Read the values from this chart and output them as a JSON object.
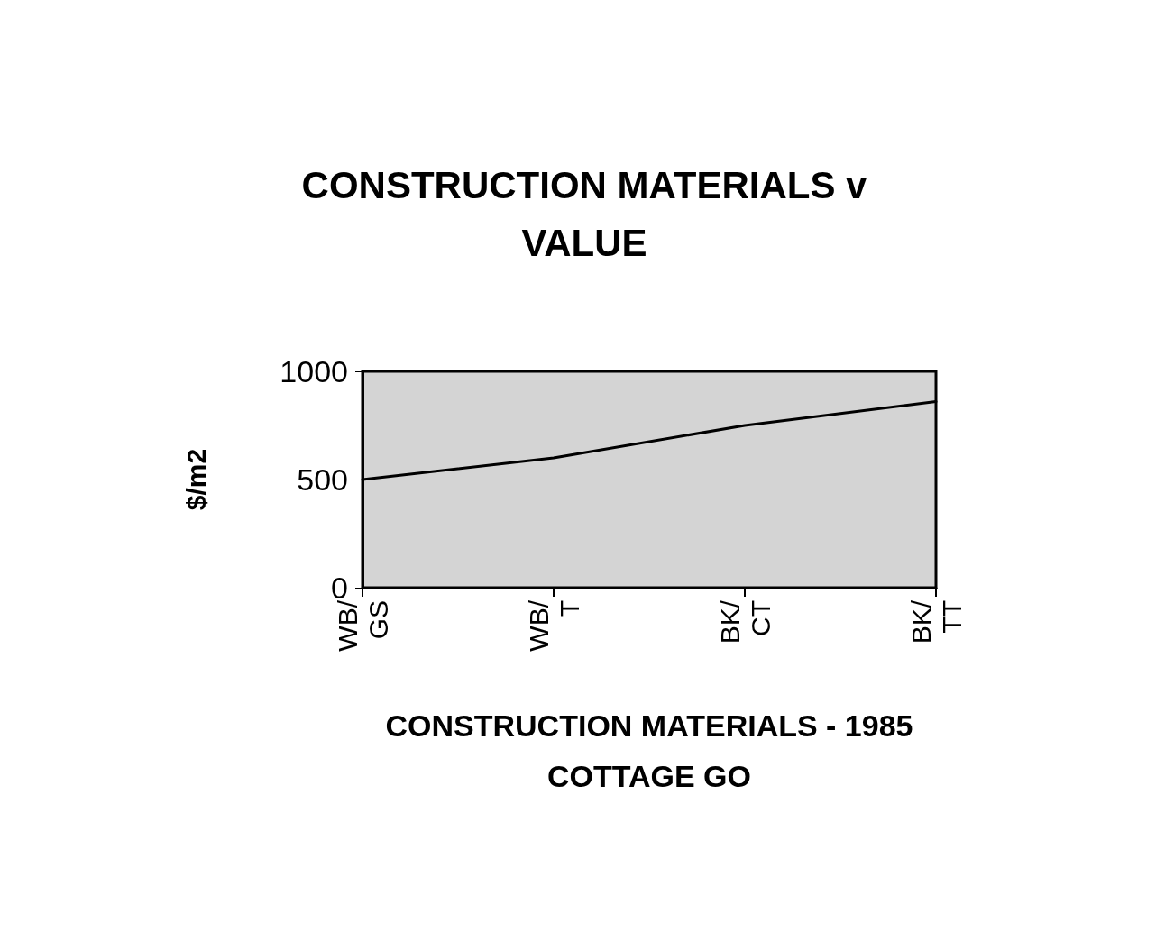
{
  "chart_data": {
    "type": "line",
    "title": "CONSTRUCTION MATERIALS v\nVALUE",
    "xlabel": "CONSTRUCTION MATERIALS - 1985\nCOTTAGE GO",
    "ylabel": "$/m2",
    "categories": [
      "WB/\nGS",
      "WB/\nT",
      "BK/\nCT",
      "BK/\nTT"
    ],
    "series": [
      {
        "color": "#000000",
        "values": [
          500,
          600,
          750,
          860
        ]
      }
    ],
    "ylim": [
      0,
      1000
    ],
    "yticks": [
      0,
      500,
      1000
    ],
    "grid": false,
    "marker": "none",
    "line_style": "solid"
  }
}
